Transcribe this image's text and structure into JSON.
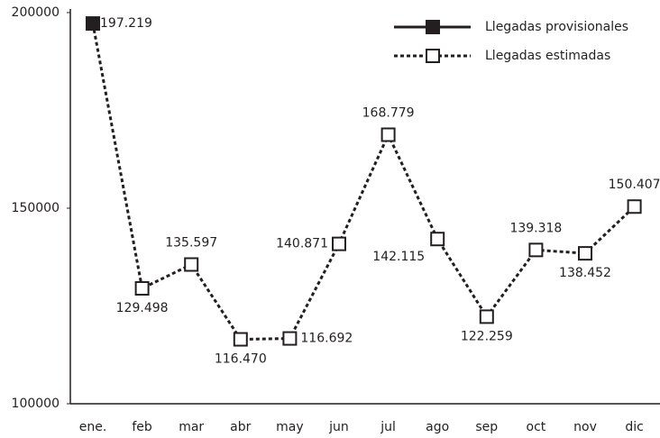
{
  "chart_data": {
    "type": "line",
    "categories": [
      "ene.",
      "feb",
      "mar",
      "abr",
      "may",
      "jun",
      "jul",
      "ago",
      "sep",
      "oct",
      "nov",
      "dic"
    ],
    "series": [
      {
        "name": "Llegadas provisionales",
        "color": "#231f20",
        "style": "solid",
        "marker": "filled-square",
        "values": [
          197219,
          null,
          null,
          null,
          null,
          null,
          null,
          null,
          null,
          null,
          null,
          null
        ],
        "value_labels": [
          "197.219",
          null,
          null,
          null,
          null,
          null,
          null,
          null,
          null,
          null,
          null,
          null
        ]
      },
      {
        "name": "Llegadas estimadas",
        "color": "#231f20",
        "style": "dashed",
        "marker": "open-square",
        "values": [
          197219,
          129498,
          135597,
          116470,
          116692,
          140871,
          168779,
          142115,
          122259,
          139318,
          138452,
          150407
        ],
        "value_labels": [
          null,
          "129.498",
          "135.597",
          "116.470",
          "116.692",
          "140.871",
          "168.779",
          "142.115",
          "122.259",
          "139.318",
          "138.452",
          "150.407"
        ]
      }
    ],
    "ylim": [
      100000,
      200000
    ],
    "yticks": [
      100000,
      150000,
      200000
    ],
    "grid": false,
    "legend": "upper right"
  }
}
